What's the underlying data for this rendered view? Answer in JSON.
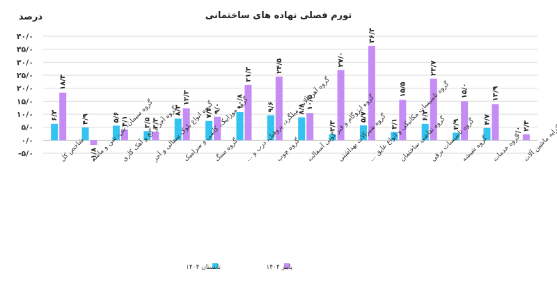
{
  "chart_data": {
    "type": "bar",
    "title": "تورم فصلی نهاده های ساختمانی",
    "unit_label": "درصد",
    "ylabel": "",
    "xlabel": "",
    "ylim": [
      -5,
      40
    ],
    "yticks": [
      -5,
      0,
      5,
      10,
      15,
      20,
      25,
      30,
      35,
      40
    ],
    "ytick_labels": [
      "-۵/۰",
      "۰/۰",
      "۵/۰",
      "۱۰/۰",
      "۱۵/۰",
      "۲۰/۰",
      "۲۵/۰",
      "۳۰/۰",
      "۳۵/۰",
      "۴۰/۰"
    ],
    "grid": true,
    "legend_position": "bottom",
    "categories": [
      "شاخص کل",
      "گروه سیمان، بتن، شن و ماسه",
      "گروه آجر و گچ و آهک کاری",
      "گروه انواع بلوک سفالی و آجر",
      "گروه موزاییک، کاشی و سرامیک",
      "گروه سنگ",
      "گروه آهن آلات، میلگرد، پروفیل، درب و ...",
      "گروه چوب",
      "گروه ایزوگام و قیر گونی آسفالت",
      "گروه شیرآلات بهداشتی",
      "گروه تاسیسات مکانیکی و انواع عایق ...",
      "گروه نقاشی ساختمان",
      "گروه تاسیسات برقی",
      "گروه شیشه",
      "گروه خدمات",
      "گروه کرایه ماشین آلات"
    ],
    "series": [
      {
        "name": "تابستان ۱۴۰۴",
        "color": "#33c3f0",
        "values": [
          6.3,
          4.9,
          5.6,
          3.5,
          8.3,
          7.4,
          10.8,
          9.6,
          8.8,
          2.3,
          5.7,
          3.1,
          6.3,
          2.9,
          4.7,
          0.0
        ],
        "labels": [
          "۶/۳",
          "۴/۹",
          "۵/۶",
          "۳/۵",
          "۸/۳",
          "۷/۴",
          "۱۰/۸",
          "۹/۶",
          "۸/۸",
          "۲/۳",
          "۵/۷",
          "۳/۱",
          "۶/۳",
          "۲/۹",
          "۴/۷",
          "۰/۰"
        ]
      },
      {
        "name": "پاییز ۱۴۰۴",
        "color": "#c58cf5",
        "values": [
          18.3,
          -1.8,
          4.1,
          3.3,
          12.3,
          9.0,
          21.3,
          24.5,
          10.5,
          27.0,
          36.3,
          15.5,
          23.7,
          15.0,
          13.9,
          2.3
        ],
        "labels": [
          "۱۸/۳",
          "-۱/۸",
          "۴/۱",
          "۳/۳",
          "۱۲/۳",
          "۹/۰",
          "۲۱/۳",
          "۲۴/۵",
          "۱۰/۵",
          "۲۷/۰",
          "۳۶/۳",
          "۱۵/۵",
          "۲۳/۷",
          "۱۵/۰",
          "۱۳/۹",
          "۲/۳"
        ]
      }
    ]
  }
}
